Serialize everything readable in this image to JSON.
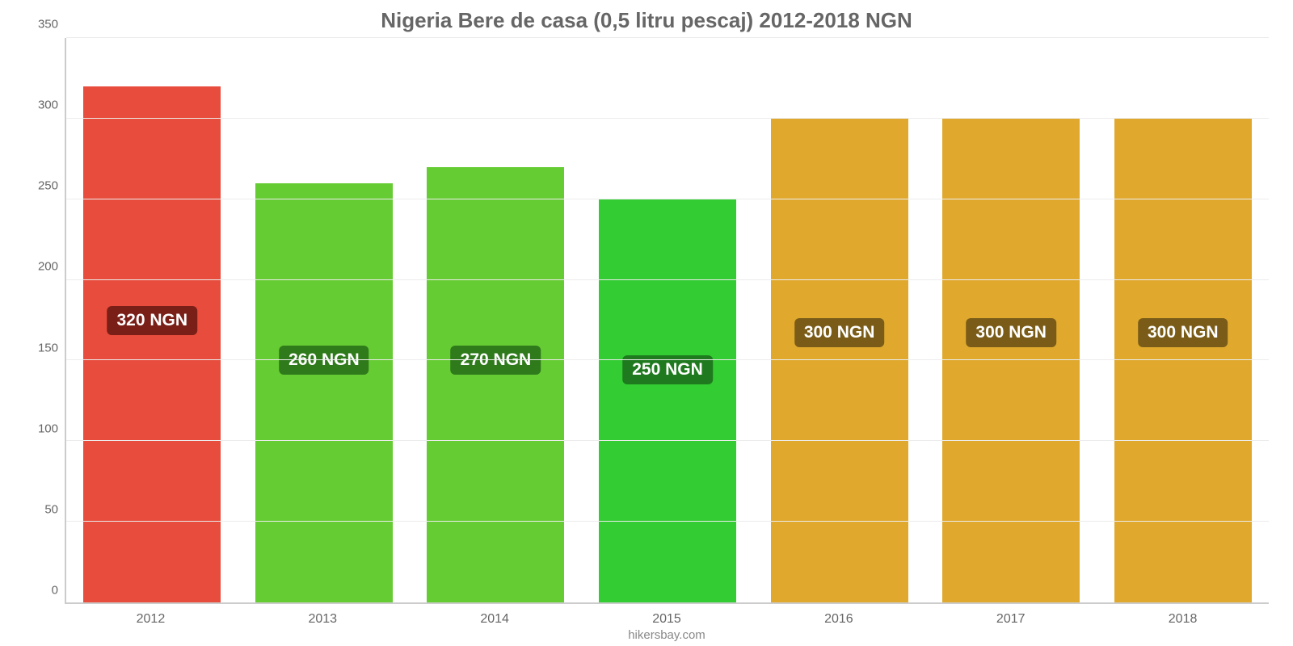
{
  "chart": {
    "type": "bar",
    "title": "Nigeria Bere de casa (0,5 litru pescaj) 2012-2018 NGN",
    "title_fontsize": 26,
    "title_color": "#666666",
    "source": "hikersbay.com",
    "source_fontsize": 15,
    "background_color": "#ffffff",
    "grid_color": "#ececec",
    "axis_line_color": "#cccccc",
    "tick_label_color": "#666666",
    "tick_fontsize": 15,
    "ylim": [
      0,
      350
    ],
    "ytick_step": 50,
    "yticks": [
      0,
      50,
      100,
      150,
      200,
      250,
      300,
      350
    ],
    "bar_width_pct": 80,
    "label_fontsize": 21,
    "data": {
      "categories": [
        "2012",
        "2013",
        "2014",
        "2015",
        "2016",
        "2017",
        "2018"
      ],
      "values": [
        320,
        260,
        270,
        250,
        300,
        300,
        300
      ],
      "display_labels": [
        "320 NGN",
        "260 NGN",
        "270 NGN",
        "250 NGN",
        "300 NGN",
        "300 NGN",
        "300 NGN"
      ],
      "bar_colors": [
        "#e74c3c",
        "#66cc33",
        "#66cc33",
        "#33cc33",
        "#e0a92e",
        "#e0a92e",
        "#e0a92e"
      ],
      "label_bg_colors": [
        "#7a1f18",
        "#2f7a1b",
        "#2f7a1b",
        "#1f7a1f",
        "#7a5c18",
        "#7a5c18",
        "#7a5c18"
      ],
      "label_y_values": [
        175,
        150,
        150,
        144,
        167,
        167,
        167
      ]
    }
  }
}
